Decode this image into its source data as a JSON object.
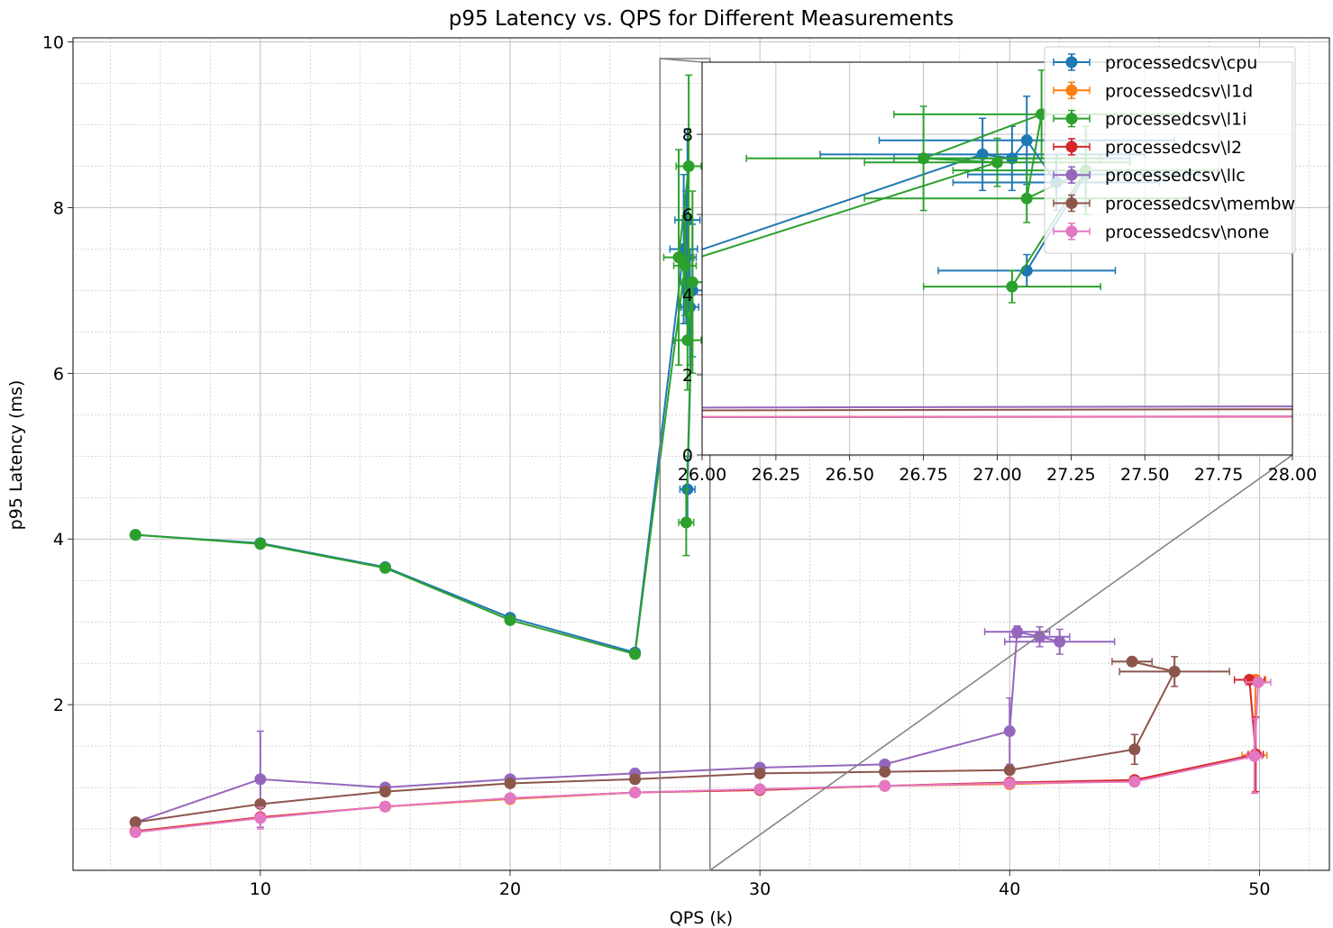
{
  "chart_data": {
    "type": "line",
    "title": "p95 Latency vs. QPS for Different Measurements",
    "xlabel": "QPS (k)",
    "ylabel": "p95 Latency (ms)",
    "xlim": [
      2.5,
      52.8
    ],
    "ylim": [
      0,
      10.05
    ],
    "xticks": [
      10,
      20,
      30,
      40,
      50
    ],
    "yticks": [
      2,
      4,
      6,
      8,
      10
    ],
    "grid": "major and minor",
    "legend_placement": "upper-right",
    "series": [
      {
        "name": "processedcsv\\cpu",
        "color": "#1f77b4",
        "x": [
          5,
          10,
          15,
          20,
          25,
          26.95,
          27.05,
          27.1,
          27.2,
          27.3,
          27.1
        ],
        "y": [
          4.05,
          3.95,
          3.66,
          3.05,
          2.63,
          7.5,
          7.4,
          7.85,
          6.8,
          7.0,
          4.6
        ],
        "xerr": [
          0.05,
          0.05,
          0.05,
          0.05,
          0.05,
          0.55,
          0.4,
          0.5,
          0.35,
          0.4,
          0.3
        ],
        "yerr": [
          0.02,
          0.02,
          0.02,
          0.03,
          0.03,
          0.9,
          0.8,
          1.1,
          0.7,
          0.8,
          0.4
        ]
      },
      {
        "name": "processedcsv\\l1d",
        "color": "#ff7f0e",
        "x": [
          5,
          10,
          15,
          20,
          25,
          30,
          35,
          40,
          45,
          49.8,
          49.85
        ],
        "y": [
          0.47,
          0.64,
          0.77,
          0.86,
          0.94,
          0.97,
          1.02,
          1.04,
          1.08,
          1.39,
          2.3
        ],
        "xerr": [
          0.05,
          0.05,
          0.05,
          0.05,
          0.05,
          0.05,
          0.05,
          0.05,
          0.1,
          0.5,
          0.4
        ],
        "yerr": [
          0.02,
          0.04,
          0.02,
          0.02,
          0.02,
          0.02,
          0.02,
          0.03,
          0.03,
          0.05,
          0.05
        ]
      },
      {
        "name": "processedcsv\\l1i",
        "color": "#2ca02c",
        "x": [
          5,
          10,
          15,
          20,
          25,
          27.0,
          26.75,
          27.15,
          27.1,
          27.3,
          27.05
        ],
        "y": [
          4.05,
          3.94,
          3.65,
          3.02,
          2.61,
          7.3,
          7.4,
          8.5,
          6.4,
          7.1,
          4.2
        ],
        "xerr": [
          0.05,
          0.05,
          0.05,
          0.05,
          0.05,
          0.45,
          0.6,
          0.5,
          0.55,
          0.45,
          0.3
        ],
        "yerr": [
          0.02,
          0.02,
          0.02,
          0.03,
          0.03,
          0.6,
          1.3,
          1.1,
          0.6,
          1.1,
          0.4
        ]
      },
      {
        "name": "processedcsv\\l2",
        "color": "#d62728",
        "x": [
          5,
          10,
          15,
          20,
          25,
          30,
          35,
          40,
          45,
          49.85,
          49.6
        ],
        "y": [
          0.47,
          0.64,
          0.77,
          0.87,
          0.94,
          0.97,
          1.02,
          1.06,
          1.09,
          1.4,
          2.3
        ],
        "xerr": [
          0.05,
          0.05,
          0.05,
          0.05,
          0.05,
          0.05,
          0.05,
          0.05,
          0.1,
          0.3,
          0.6
        ],
        "yerr": [
          0.02,
          0.02,
          0.02,
          0.02,
          0.02,
          0.02,
          0.02,
          0.03,
          0.03,
          0.45,
          0.05
        ]
      },
      {
        "name": "processedcsv\\llc",
        "color": "#9467bd",
        "x": [
          5,
          10,
          15,
          20,
          25,
          30,
          35,
          40,
          40.3,
          41.2,
          42.0
        ],
        "y": [
          0.58,
          1.1,
          1.0,
          1.1,
          1.17,
          1.24,
          1.28,
          1.68,
          2.88,
          2.82,
          2.76
        ],
        "xerr": [
          0.05,
          0.05,
          0.05,
          0.05,
          0.05,
          0.05,
          0.05,
          0.1,
          1.3,
          1.2,
          2.2
        ],
        "yerr": [
          0.02,
          0.58,
          0.03,
          0.02,
          0.02,
          0.02,
          0.03,
          0.4,
          0.07,
          0.12,
          0.15
        ]
      },
      {
        "name": "processedcsv\\membw",
        "color": "#8c564b",
        "x": [
          5,
          10,
          15,
          20,
          25,
          30,
          35,
          40,
          45,
          46.6,
          44.9
        ],
        "y": [
          0.58,
          0.8,
          0.95,
          1.05,
          1.1,
          1.17,
          1.19,
          1.21,
          1.46,
          2.4,
          2.52
        ],
        "xerr": [
          0.05,
          0.05,
          0.05,
          0.05,
          0.05,
          0.05,
          0.05,
          0.05,
          0.1,
          2.2,
          0.8
        ],
        "yerr": [
          0.02,
          0.03,
          0.02,
          0.02,
          0.02,
          0.02,
          0.02,
          0.02,
          0.18,
          0.18,
          0.05
        ]
      },
      {
        "name": "processedcsv\\none",
        "color": "#e377c2",
        "x": [
          5,
          10,
          15,
          20,
          25,
          30,
          35,
          40,
          45,
          49.8,
          49.95
        ],
        "y": [
          0.46,
          0.63,
          0.77,
          0.87,
          0.94,
          0.98,
          1.02,
          1.05,
          1.07,
          1.38,
          2.27
        ],
        "xerr": [
          0.05,
          0.05,
          0.05,
          0.05,
          0.05,
          0.05,
          0.05,
          0.05,
          0.1,
          0.3,
          0.5
        ],
        "yerr": [
          0.02,
          0.13,
          0.02,
          0.02,
          0.02,
          0.02,
          0.02,
          0.02,
          0.02,
          0.45,
          0.05
        ]
      }
    ],
    "inset": {
      "type": "line",
      "xlim": [
        26.0,
        28.0
      ],
      "ylim": [
        0,
        9.8
      ],
      "xticks": [
        "26.00",
        "26.25",
        "26.50",
        "26.75",
        "27.00",
        "27.25",
        "27.50",
        "27.75",
        "28.00"
      ],
      "yticks": [
        "0",
        "2",
        "4",
        "6",
        "8"
      ],
      "grid": "major",
      "source_region": {
        "xlim": [
          26.0,
          28.0
        ],
        "ylim": [
          0,
          9.8
        ]
      }
    }
  }
}
